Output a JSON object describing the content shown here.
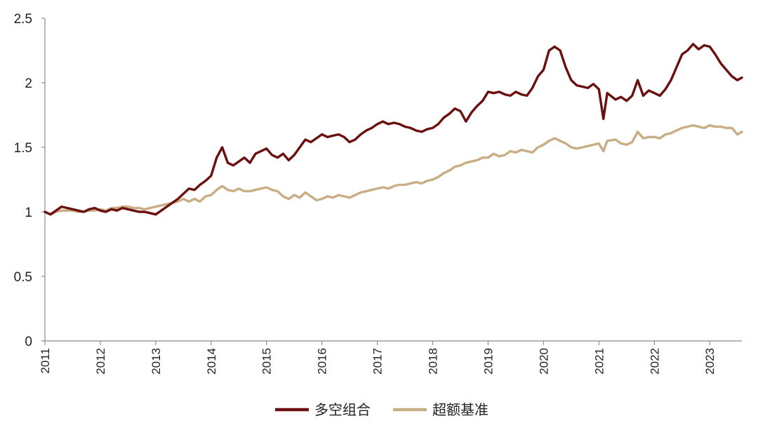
{
  "chart_data": {
    "type": "line",
    "title": "",
    "xlabel": "",
    "ylabel": "",
    "xlim": [
      2011.0,
      2023.58
    ],
    "ylim": [
      0,
      2.5
    ],
    "yticks": [
      {
        "value": 0,
        "label": "0"
      },
      {
        "value": 0.5,
        "label": "0.5"
      },
      {
        "value": 1,
        "label": "1"
      },
      {
        "value": 1.5,
        "label": "1.5"
      },
      {
        "value": 2,
        "label": "2"
      },
      {
        "value": 2.5,
        "label": "2.5"
      }
    ],
    "xticks": [
      {
        "value": 2011,
        "label": "2011"
      },
      {
        "value": 2012,
        "label": "2012"
      },
      {
        "value": 2013,
        "label": "2013"
      },
      {
        "value": 2014,
        "label": "2014"
      },
      {
        "value": 2015,
        "label": "2015"
      },
      {
        "value": 2016,
        "label": "2016"
      },
      {
        "value": 2017,
        "label": "2017"
      },
      {
        "value": 2018,
        "label": "2018"
      },
      {
        "value": 2019,
        "label": "2019"
      },
      {
        "value": 2020,
        "label": "2020"
      },
      {
        "value": 2021,
        "label": "2021"
      },
      {
        "value": 2022,
        "label": "2022"
      },
      {
        "value": 2023,
        "label": "2023"
      }
    ],
    "grid": false,
    "legend_position": "bottom-center",
    "series": [
      {
        "name": "多空组合",
        "color": "#6b0f0f",
        "points": [
          [
            2011.0,
            1.0
          ],
          [
            2011.1,
            0.98
          ],
          [
            2011.2,
            1.01
          ],
          [
            2011.3,
            1.04
          ],
          [
            2011.4,
            1.03
          ],
          [
            2011.5,
            1.02
          ],
          [
            2011.6,
            1.01
          ],
          [
            2011.7,
            1.0
          ],
          [
            2011.8,
            1.02
          ],
          [
            2011.9,
            1.03
          ],
          [
            2012.0,
            1.01
          ],
          [
            2012.1,
            1.0
          ],
          [
            2012.2,
            1.02
          ],
          [
            2012.3,
            1.01
          ],
          [
            2012.4,
            1.03
          ],
          [
            2012.5,
            1.02
          ],
          [
            2012.6,
            1.01
          ],
          [
            2012.7,
            1.0
          ],
          [
            2012.8,
            1.0
          ],
          [
            2012.9,
            0.99
          ],
          [
            2013.0,
            0.98
          ],
          [
            2013.1,
            1.01
          ],
          [
            2013.2,
            1.04
          ],
          [
            2013.3,
            1.07
          ],
          [
            2013.4,
            1.1
          ],
          [
            2013.5,
            1.14
          ],
          [
            2013.6,
            1.18
          ],
          [
            2013.7,
            1.17
          ],
          [
            2013.8,
            1.21
          ],
          [
            2013.9,
            1.24
          ],
          [
            2014.0,
            1.28
          ],
          [
            2014.1,
            1.42
          ],
          [
            2014.2,
            1.5
          ],
          [
            2014.3,
            1.38
          ],
          [
            2014.4,
            1.36
          ],
          [
            2014.5,
            1.39
          ],
          [
            2014.6,
            1.42
          ],
          [
            2014.7,
            1.38
          ],
          [
            2014.8,
            1.45
          ],
          [
            2014.9,
            1.47
          ],
          [
            2015.0,
            1.49
          ],
          [
            2015.1,
            1.44
          ],
          [
            2015.2,
            1.42
          ],
          [
            2015.3,
            1.45
          ],
          [
            2015.4,
            1.4
          ],
          [
            2015.5,
            1.44
          ],
          [
            2015.6,
            1.5
          ],
          [
            2015.7,
            1.56
          ],
          [
            2015.8,
            1.54
          ],
          [
            2015.9,
            1.57
          ],
          [
            2016.0,
            1.6
          ],
          [
            2016.1,
            1.58
          ],
          [
            2016.2,
            1.59
          ],
          [
            2016.3,
            1.6
          ],
          [
            2016.4,
            1.58
          ],
          [
            2016.5,
            1.54
          ],
          [
            2016.6,
            1.56
          ],
          [
            2016.7,
            1.6
          ],
          [
            2016.8,
            1.63
          ],
          [
            2016.9,
            1.65
          ],
          [
            2017.0,
            1.68
          ],
          [
            2017.1,
            1.7
          ],
          [
            2017.2,
            1.68
          ],
          [
            2017.3,
            1.69
          ],
          [
            2017.4,
            1.68
          ],
          [
            2017.5,
            1.66
          ],
          [
            2017.6,
            1.65
          ],
          [
            2017.7,
            1.63
          ],
          [
            2017.8,
            1.62
          ],
          [
            2017.9,
            1.64
          ],
          [
            2018.0,
            1.65
          ],
          [
            2018.1,
            1.68
          ],
          [
            2018.2,
            1.73
          ],
          [
            2018.3,
            1.76
          ],
          [
            2018.4,
            1.8
          ],
          [
            2018.5,
            1.78
          ],
          [
            2018.6,
            1.7
          ],
          [
            2018.7,
            1.77
          ],
          [
            2018.8,
            1.82
          ],
          [
            2018.9,
            1.86
          ],
          [
            2019.0,
            1.93
          ],
          [
            2019.1,
            1.92
          ],
          [
            2019.2,
            1.93
          ],
          [
            2019.3,
            1.91
          ],
          [
            2019.4,
            1.9
          ],
          [
            2019.5,
            1.93
          ],
          [
            2019.6,
            1.91
          ],
          [
            2019.7,
            1.9
          ],
          [
            2019.8,
            1.96
          ],
          [
            2019.9,
            2.05
          ],
          [
            2020.0,
            2.1
          ],
          [
            2020.1,
            2.25
          ],
          [
            2020.2,
            2.28
          ],
          [
            2020.3,
            2.25
          ],
          [
            2020.4,
            2.12
          ],
          [
            2020.5,
            2.02
          ],
          [
            2020.6,
            1.98
          ],
          [
            2020.7,
            1.97
          ],
          [
            2020.8,
            1.96
          ],
          [
            2020.9,
            1.99
          ],
          [
            2021.0,
            1.95
          ],
          [
            2021.08,
            1.72
          ],
          [
            2021.15,
            1.92
          ],
          [
            2021.3,
            1.87
          ],
          [
            2021.4,
            1.89
          ],
          [
            2021.5,
            1.86
          ],
          [
            2021.6,
            1.9
          ],
          [
            2021.7,
            2.02
          ],
          [
            2021.8,
            1.9
          ],
          [
            2021.9,
            1.94
          ],
          [
            2022.0,
            1.92
          ],
          [
            2022.1,
            1.9
          ],
          [
            2022.2,
            1.95
          ],
          [
            2022.3,
            2.02
          ],
          [
            2022.4,
            2.12
          ],
          [
            2022.5,
            2.22
          ],
          [
            2022.6,
            2.25
          ],
          [
            2022.7,
            2.3
          ],
          [
            2022.8,
            2.26
          ],
          [
            2022.9,
            2.29
          ],
          [
            2023.0,
            2.28
          ],
          [
            2023.1,
            2.22
          ],
          [
            2023.2,
            2.15
          ],
          [
            2023.3,
            2.1
          ],
          [
            2023.4,
            2.05
          ],
          [
            2023.5,
            2.02
          ],
          [
            2023.58,
            2.04
          ]
        ]
      },
      {
        "name": "超额基准",
        "color": "#c9ad84",
        "points": [
          [
            2011.0,
            1.0
          ],
          [
            2011.1,
            0.98
          ],
          [
            2011.2,
            1.0
          ],
          [
            2011.3,
            1.01
          ],
          [
            2011.4,
            1.01
          ],
          [
            2011.5,
            1.01
          ],
          [
            2011.6,
            1.0
          ],
          [
            2011.7,
            1.0
          ],
          [
            2011.8,
            1.01
          ],
          [
            2011.9,
            1.01
          ],
          [
            2012.0,
            1.02
          ],
          [
            2012.1,
            1.01
          ],
          [
            2012.2,
            1.03
          ],
          [
            2012.3,
            1.03
          ],
          [
            2012.4,
            1.04
          ],
          [
            2012.5,
            1.04
          ],
          [
            2012.6,
            1.03
          ],
          [
            2012.7,
            1.03
          ],
          [
            2012.8,
            1.02
          ],
          [
            2012.9,
            1.03
          ],
          [
            2013.0,
            1.04
          ],
          [
            2013.1,
            1.05
          ],
          [
            2013.2,
            1.06
          ],
          [
            2013.3,
            1.07
          ],
          [
            2013.4,
            1.08
          ],
          [
            2013.5,
            1.1
          ],
          [
            2013.6,
            1.08
          ],
          [
            2013.7,
            1.1
          ],
          [
            2013.8,
            1.08
          ],
          [
            2013.9,
            1.12
          ],
          [
            2014.0,
            1.13
          ],
          [
            2014.1,
            1.17
          ],
          [
            2014.2,
            1.2
          ],
          [
            2014.3,
            1.17
          ],
          [
            2014.4,
            1.16
          ],
          [
            2014.5,
            1.18
          ],
          [
            2014.6,
            1.16
          ],
          [
            2014.7,
            1.16
          ],
          [
            2014.8,
            1.17
          ],
          [
            2014.9,
            1.18
          ],
          [
            2015.0,
            1.19
          ],
          [
            2015.1,
            1.17
          ],
          [
            2015.2,
            1.16
          ],
          [
            2015.3,
            1.12
          ],
          [
            2015.4,
            1.1
          ],
          [
            2015.5,
            1.13
          ],
          [
            2015.6,
            1.11
          ],
          [
            2015.7,
            1.15
          ],
          [
            2015.8,
            1.12
          ],
          [
            2015.9,
            1.09
          ],
          [
            2016.0,
            1.1
          ],
          [
            2016.1,
            1.12
          ],
          [
            2016.2,
            1.11
          ],
          [
            2016.3,
            1.13
          ],
          [
            2016.4,
            1.12
          ],
          [
            2016.5,
            1.11
          ],
          [
            2016.6,
            1.13
          ],
          [
            2016.7,
            1.15
          ],
          [
            2016.8,
            1.16
          ],
          [
            2016.9,
            1.17
          ],
          [
            2017.0,
            1.18
          ],
          [
            2017.1,
            1.19
          ],
          [
            2017.2,
            1.18
          ],
          [
            2017.3,
            1.2
          ],
          [
            2017.4,
            1.21
          ],
          [
            2017.5,
            1.21
          ],
          [
            2017.6,
            1.22
          ],
          [
            2017.7,
            1.23
          ],
          [
            2017.8,
            1.22
          ],
          [
            2017.9,
            1.24
          ],
          [
            2018.0,
            1.25
          ],
          [
            2018.1,
            1.27
          ],
          [
            2018.2,
            1.3
          ],
          [
            2018.3,
            1.32
          ],
          [
            2018.4,
            1.35
          ],
          [
            2018.5,
            1.36
          ],
          [
            2018.6,
            1.38
          ],
          [
            2018.7,
            1.39
          ],
          [
            2018.8,
            1.4
          ],
          [
            2018.9,
            1.42
          ],
          [
            2019.0,
            1.42
          ],
          [
            2019.1,
            1.45
          ],
          [
            2019.2,
            1.43
          ],
          [
            2019.3,
            1.44
          ],
          [
            2019.4,
            1.47
          ],
          [
            2019.5,
            1.46
          ],
          [
            2019.6,
            1.48
          ],
          [
            2019.7,
            1.47
          ],
          [
            2019.8,
            1.46
          ],
          [
            2019.9,
            1.5
          ],
          [
            2020.0,
            1.52
          ],
          [
            2020.1,
            1.55
          ],
          [
            2020.2,
            1.57
          ],
          [
            2020.3,
            1.55
          ],
          [
            2020.4,
            1.53
          ],
          [
            2020.5,
            1.5
          ],
          [
            2020.6,
            1.49
          ],
          [
            2020.7,
            1.5
          ],
          [
            2020.8,
            1.51
          ],
          [
            2020.9,
            1.52
          ],
          [
            2021.0,
            1.53
          ],
          [
            2021.08,
            1.47
          ],
          [
            2021.15,
            1.55
          ],
          [
            2021.3,
            1.56
          ],
          [
            2021.4,
            1.53
          ],
          [
            2021.5,
            1.52
          ],
          [
            2021.6,
            1.54
          ],
          [
            2021.7,
            1.62
          ],
          [
            2021.8,
            1.57
          ],
          [
            2021.9,
            1.58
          ],
          [
            2022.0,
            1.58
          ],
          [
            2022.1,
            1.57
          ],
          [
            2022.2,
            1.6
          ],
          [
            2022.3,
            1.61
          ],
          [
            2022.4,
            1.63
          ],
          [
            2022.5,
            1.65
          ],
          [
            2022.6,
            1.66
          ],
          [
            2022.7,
            1.67
          ],
          [
            2022.8,
            1.66
          ],
          [
            2022.9,
            1.65
          ],
          [
            2023.0,
            1.67
          ],
          [
            2023.1,
            1.66
          ],
          [
            2023.2,
            1.66
          ],
          [
            2023.3,
            1.65
          ],
          [
            2023.4,
            1.65
          ],
          [
            2023.5,
            1.6
          ],
          [
            2023.58,
            1.62
          ]
        ]
      }
    ]
  }
}
